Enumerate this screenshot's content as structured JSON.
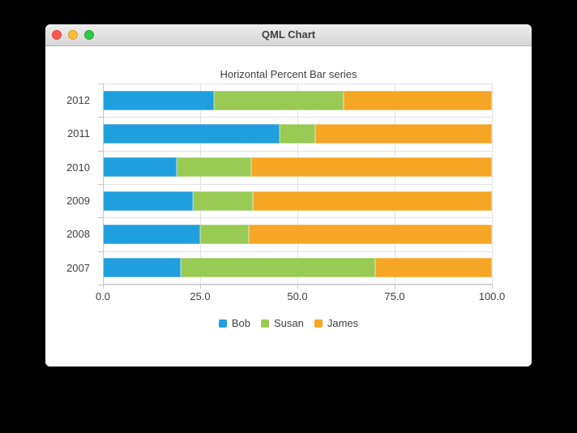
{
  "window": {
    "title": "QML Chart",
    "controls": {
      "close": "close-button",
      "minimize": "minimize-button",
      "zoom": "zoom-button"
    },
    "control_colors": {
      "close": "#fc5753",
      "minimize": "#fdbc40",
      "zoom": "#33c748"
    }
  },
  "theme": {
    "grid_color": "#e2e2e2",
    "axis_line_color": "#c6c6c6",
    "label_color": "#404044",
    "plot_background": "#ffffff",
    "desktop_background": "#000000"
  },
  "chart_data": {
    "type": "bar",
    "subtype": "horizontal-percent-stacked",
    "title": "Horizontal Percent Bar series",
    "categories": [
      "2012",
      "2011",
      "2010",
      "2009",
      "2008",
      "2007"
    ],
    "categories_order": "top-to-bottom",
    "series": [
      {
        "name": "Bob",
        "color": "#209fdf",
        "border_color": "#6ab8e5",
        "values": [
          6,
          5,
          4,
          3,
          2,
          2
        ]
      },
      {
        "name": "Susan",
        "color": "#99ca53",
        "border_color": "#b8dc8d",
        "values": [
          7,
          1,
          4,
          2,
          1,
          5
        ]
      },
      {
        "name": "James",
        "color": "#f6a625",
        "border_color": "#f9c368",
        "values": [
          8,
          5,
          13,
          8,
          5,
          3
        ]
      }
    ],
    "percent_by_category": [
      [
        28.6,
        33.3,
        38.1
      ],
      [
        45.5,
        9.1,
        45.5
      ],
      [
        19.0,
        19.0,
        61.9
      ],
      [
        23.1,
        15.4,
        61.5
      ],
      [
        25.0,
        12.5,
        62.5
      ],
      [
        20.0,
        50.0,
        30.0
      ]
    ],
    "x_axis": {
      "ticks": [
        "0.0",
        "25.0",
        "50.0",
        "75.0",
        "100.0"
      ],
      "range": [
        0,
        100
      ]
    },
    "legend": {
      "position": "bottom",
      "entries": [
        "Bob",
        "Susan",
        "James"
      ]
    },
    "grid": true
  }
}
